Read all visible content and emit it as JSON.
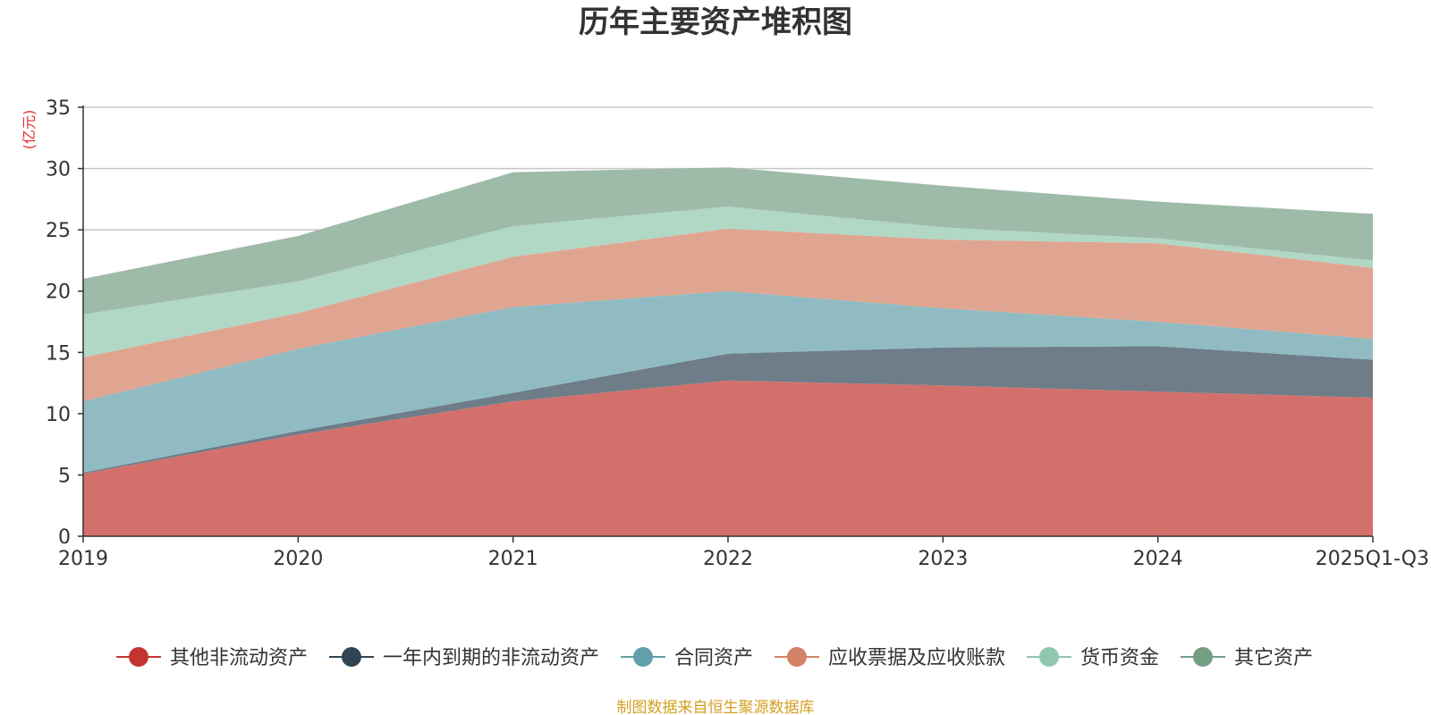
{
  "chart_data": {
    "type": "area",
    "stacked": true,
    "title": "历年主要资产堆积图",
    "unit_label": "(亿元)",
    "source": "制图数据来自恒生聚源数据库",
    "categories": [
      "2019",
      "2020",
      "2021",
      "2022",
      "2023",
      "2024",
      "2025Q1-Q3"
    ],
    "ylim": [
      0,
      35
    ],
    "yticks": [
      0,
      5,
      10,
      15,
      20,
      25,
      30,
      35
    ],
    "grid": true,
    "legend_position": "bottom",
    "series": [
      {
        "name": "其他非流动资产",
        "color": "#c23531",
        "fill": "#d4706c",
        "values": [
          5.1,
          8.3,
          11.0,
          12.7,
          12.3,
          11.8,
          11.3
        ]
      },
      {
        "name": "一年内到期的非流动资产",
        "color": "#2f4554",
        "fill": "#6e7d88",
        "values": [
          0.1,
          0.3,
          0.7,
          2.2,
          3.1,
          3.7,
          3.1
        ]
      },
      {
        "name": "合同资产",
        "color": "#61a0a8",
        "fill": "#90bbc2",
        "values": [
          5.8,
          6.7,
          7.0,
          5.1,
          3.2,
          2.0,
          1.7
        ]
      },
      {
        "name": "应收票据及应收账款",
        "color": "#d48265",
        "fill": "#e0a590",
        "values": [
          3.6,
          2.9,
          4.1,
          5.1,
          5.6,
          6.4,
          5.8
        ]
      },
      {
        "name": "货币资金",
        "color": "#91c7ae",
        "fill": "#b1d7c5",
        "values": [
          3.5,
          2.6,
          2.5,
          1.8,
          1.0,
          0.4,
          0.6
        ]
      },
      {
        "name": "其它资产",
        "color": "#749f83",
        "fill": "#9eba a8",
        "values": [
          2.9,
          3.7,
          4.4,
          3.2,
          3.4,
          3.0,
          3.8
        ]
      }
    ]
  }
}
